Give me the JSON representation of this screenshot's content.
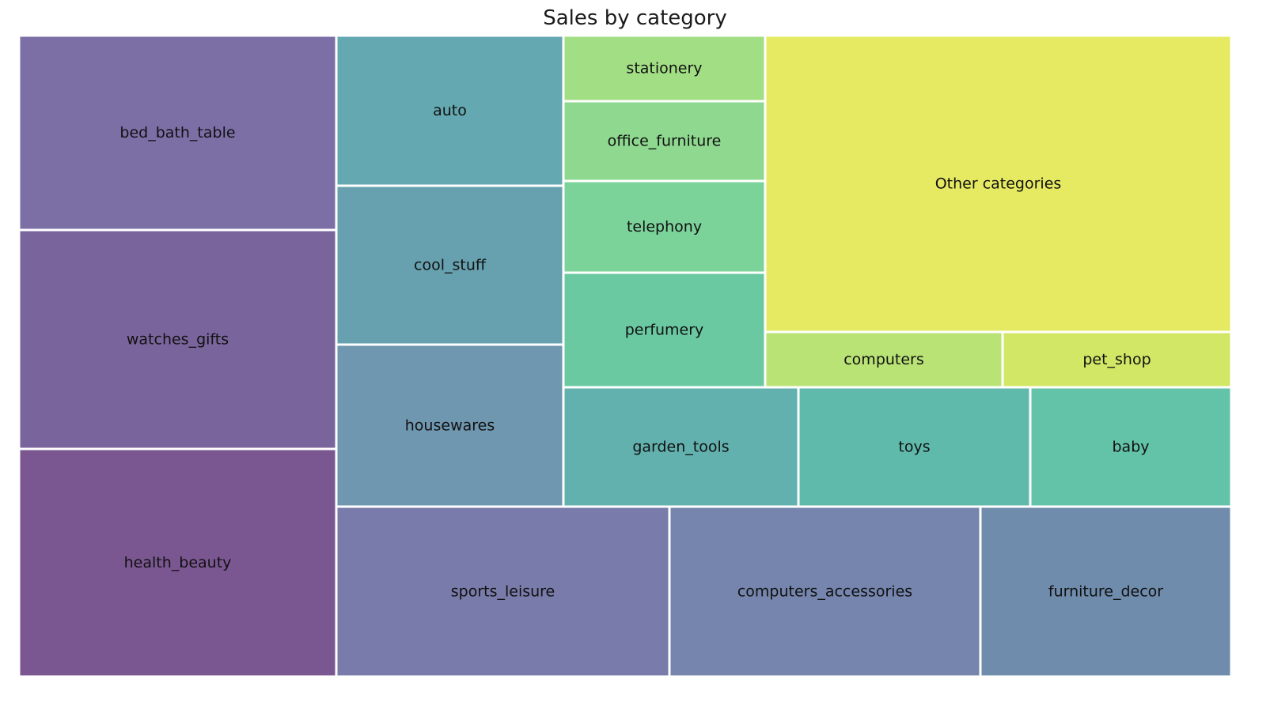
{
  "chart_data": {
    "type": "treemap",
    "title": "Sales by category",
    "nodes": [
      {
        "label": "bed_bath_table",
        "color": "#7b6fa6"
      },
      {
        "label": "watches_gifts",
        "color": "#7a649c"
      },
      {
        "label": "health_beauty",
        "color": "#7b5792"
      },
      {
        "label": "auto",
        "color": "#64a8b1"
      },
      {
        "label": "cool_stuff",
        "color": "#67a0ae"
      },
      {
        "label": "housewares",
        "color": "#6f97b0"
      },
      {
        "label": "stationery",
        "color": "#a2de84"
      },
      {
        "label": "office_furniture",
        "color": "#8ed98f"
      },
      {
        "label": "telephony",
        "color": "#7cd39a"
      },
      {
        "label": "perfumery",
        "color": "#6bc9a2"
      },
      {
        "label": "Other categories",
        "color": "#e6ea62"
      },
      {
        "label": "computers",
        "color": "#b9e375"
      },
      {
        "label": "pet_shop",
        "color": "#d3e766"
      },
      {
        "label": "garden_tools",
        "color": "#62b1ae"
      },
      {
        "label": "toys",
        "color": "#60baab"
      },
      {
        "label": "baby",
        "color": "#63c3a8"
      },
      {
        "label": "sports_leisure",
        "color": "#797baa"
      },
      {
        "label": "computers_accessories",
        "color": "#7585ad"
      },
      {
        "label": "furniture_decor",
        "color": "#6f8cad"
      }
    ]
  }
}
